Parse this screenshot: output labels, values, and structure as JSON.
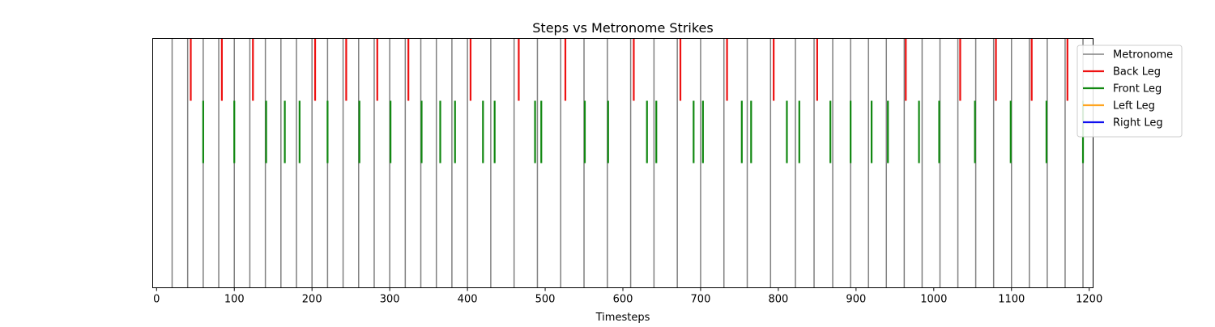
{
  "chart_data": {
    "type": "event-lines",
    "title": "Steps vs Metronome Strikes",
    "xlabel": "Timesteps",
    "ylabel": "",
    "xlim": [
      -5,
      1205
    ],
    "xticks": [
      0,
      100,
      200,
      300,
      400,
      500,
      600,
      700,
      800,
      900,
      1000,
      1100,
      1200
    ],
    "y_axis_visible": false,
    "grid": false,
    "legend_position": "upper-right",
    "series": [
      {
        "name": "Metronome",
        "color": "#808080",
        "band": [
          0.0,
          1.0
        ],
        "x": [
          20,
          40,
          60,
          80,
          100,
          120,
          140,
          160,
          180,
          200,
          220,
          240,
          260,
          280,
          300,
          320,
          340,
          360,
          380,
          400,
          430,
          460,
          490,
          520,
          550,
          580,
          610,
          640,
          670,
          700,
          730,
          760,
          790,
          822,
          846,
          870,
          893,
          916,
          939,
          962,
          985,
          1008,
          1031,
          1054,
          1077,
          1100,
          1123,
          1146,
          1169,
          1192
        ]
      },
      {
        "name": "Back Leg",
        "color": "#ee1111",
        "band": [
          0.75,
          1.0
        ],
        "x": [
          44,
          84,
          124,
          204,
          244,
          284,
          324,
          404,
          466,
          526,
          614,
          674,
          734,
          794,
          850,
          964,
          1034,
          1080,
          1126,
          1172
        ]
      },
      {
        "name": "Front Leg",
        "color": "#118811",
        "band": [
          0.5,
          0.75
        ],
        "x": [
          60,
          100,
          141,
          165,
          184,
          220,
          261,
          301,
          341,
          365,
          384,
          420,
          435,
          487,
          495,
          551,
          581,
          631,
          643,
          691,
          703,
          753,
          765,
          811,
          827,
          867,
          893,
          920,
          941,
          981,
          1007,
          1053,
          1099,
          1145,
          1192
        ]
      },
      {
        "name": "Left Leg",
        "color": "#ffa520",
        "band": [
          0.25,
          0.5
        ],
        "x": []
      },
      {
        "name": "Right Leg",
        "color": "#1010ee",
        "band": [
          0.0,
          0.25
        ],
        "x": []
      }
    ]
  }
}
